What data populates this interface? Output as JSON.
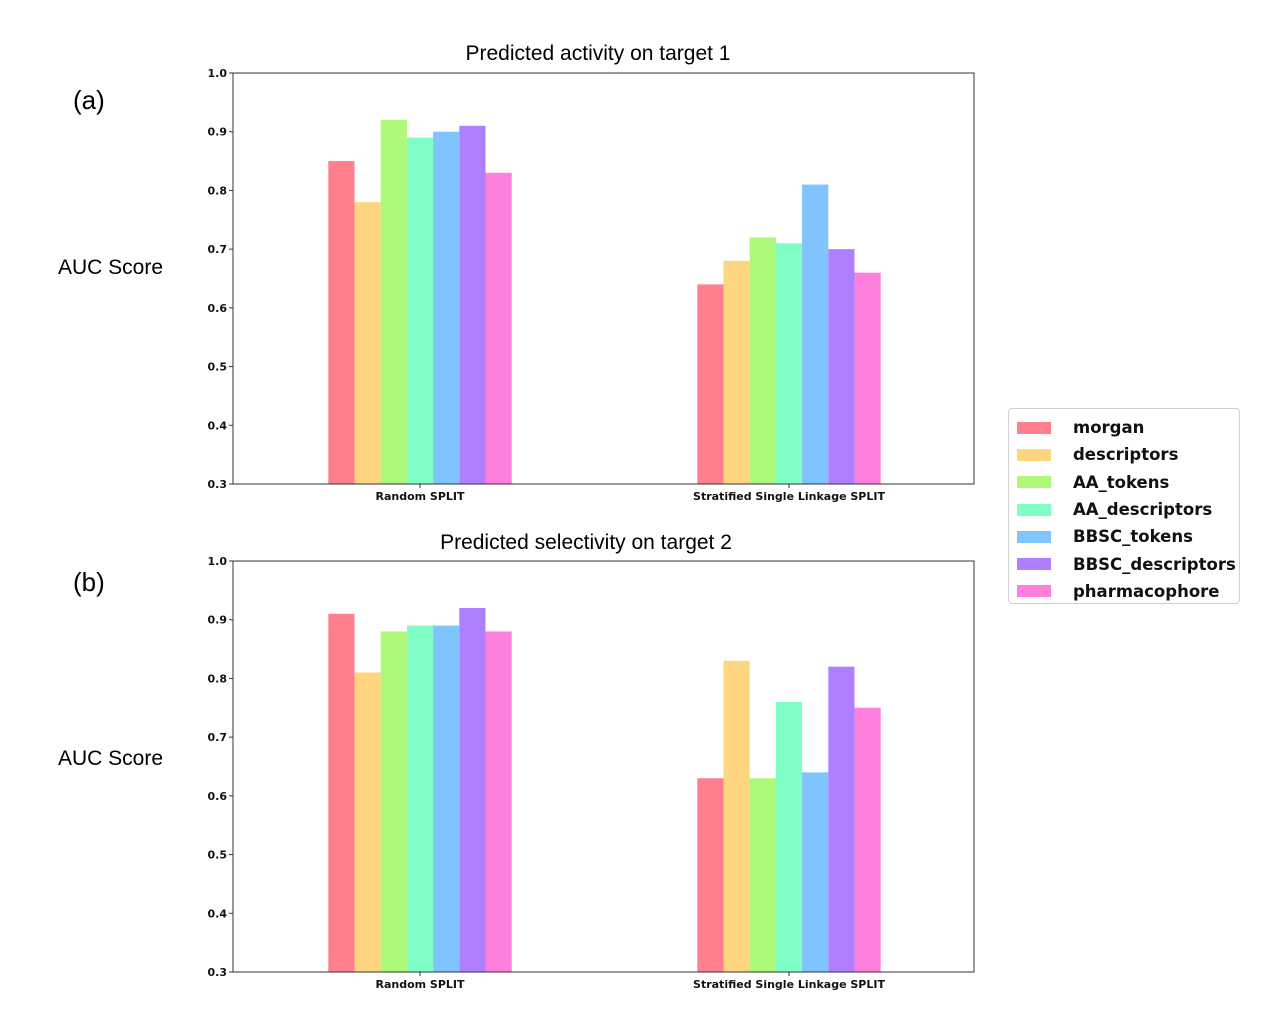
{
  "figure": {
    "panels": [
      {
        "label": "(a)",
        "ylabel": "AUC Score"
      },
      {
        "label": "(b)",
        "ylabel": "AUC Score"
      }
    ]
  },
  "legend": {
    "items": [
      {
        "label": "morgan",
        "color": "#FF7F8E"
      },
      {
        "label": "descriptors",
        "color": "#FFD57F"
      },
      {
        "label": "AA_tokens",
        "color": "#AEFA78"
      },
      {
        "label": "AA_descriptors",
        "color": "#7FFFC6"
      },
      {
        "label": "BBSC_tokens",
        "color": "#7FC3FF"
      },
      {
        "label": "BBSC_descriptors",
        "color": "#AE7FFF"
      },
      {
        "label": "pharmacophore",
        "color": "#FF7FDD"
      }
    ]
  },
  "chart_data": [
    {
      "type": "bar",
      "title": "Predicted activity on target 1",
      "xlabel": "",
      "ylabel": "AUC Score",
      "ylim": [
        0.3,
        1.0
      ],
      "yticks": [
        "0.3",
        "0.4",
        "0.5",
        "0.6",
        "0.7",
        "0.8",
        "0.9",
        "1.0"
      ],
      "categories": [
        "Random SPLIT",
        "Stratified Single Linkage SPLIT"
      ],
      "legend_position": "right",
      "grid": false,
      "series": [
        {
          "name": "morgan",
          "values": [
            0.85,
            0.64
          ]
        },
        {
          "name": "descriptors",
          "values": [
            0.78,
            0.68
          ]
        },
        {
          "name": "AA_tokens",
          "values": [
            0.92,
            0.72
          ]
        },
        {
          "name": "AA_descriptors",
          "values": [
            0.89,
            0.71
          ]
        },
        {
          "name": "BBSC_tokens",
          "values": [
            0.9,
            0.81
          ]
        },
        {
          "name": "BBSC_descriptors",
          "values": [
            0.91,
            0.7
          ]
        },
        {
          "name": "pharmacophore",
          "values": [
            0.83,
            0.66
          ]
        }
      ]
    },
    {
      "type": "bar",
      "title": "Predicted selectivity on target 2",
      "xlabel": "",
      "ylabel": "AUC Score",
      "ylim": [
        0.3,
        1.0
      ],
      "yticks": [
        "0.3",
        "0.4",
        "0.5",
        "0.6",
        "0.7",
        "0.8",
        "0.9",
        "1.0"
      ],
      "categories": [
        "Random SPLIT",
        "Stratified Single Linkage SPLIT"
      ],
      "legend_position": "right",
      "grid": false,
      "series": [
        {
          "name": "morgan",
          "values": [
            0.91,
            0.63
          ]
        },
        {
          "name": "descriptors",
          "values": [
            0.81,
            0.83
          ]
        },
        {
          "name": "AA_tokens",
          "values": [
            0.88,
            0.63
          ]
        },
        {
          "name": "AA_descriptors",
          "values": [
            0.89,
            0.76
          ]
        },
        {
          "name": "BBSC_tokens",
          "values": [
            0.89,
            0.64
          ]
        },
        {
          "name": "BBSC_descriptors",
          "values": [
            0.92,
            0.82
          ]
        },
        {
          "name": "pharmacophore",
          "values": [
            0.88,
            0.75
          ]
        }
      ]
    }
  ]
}
